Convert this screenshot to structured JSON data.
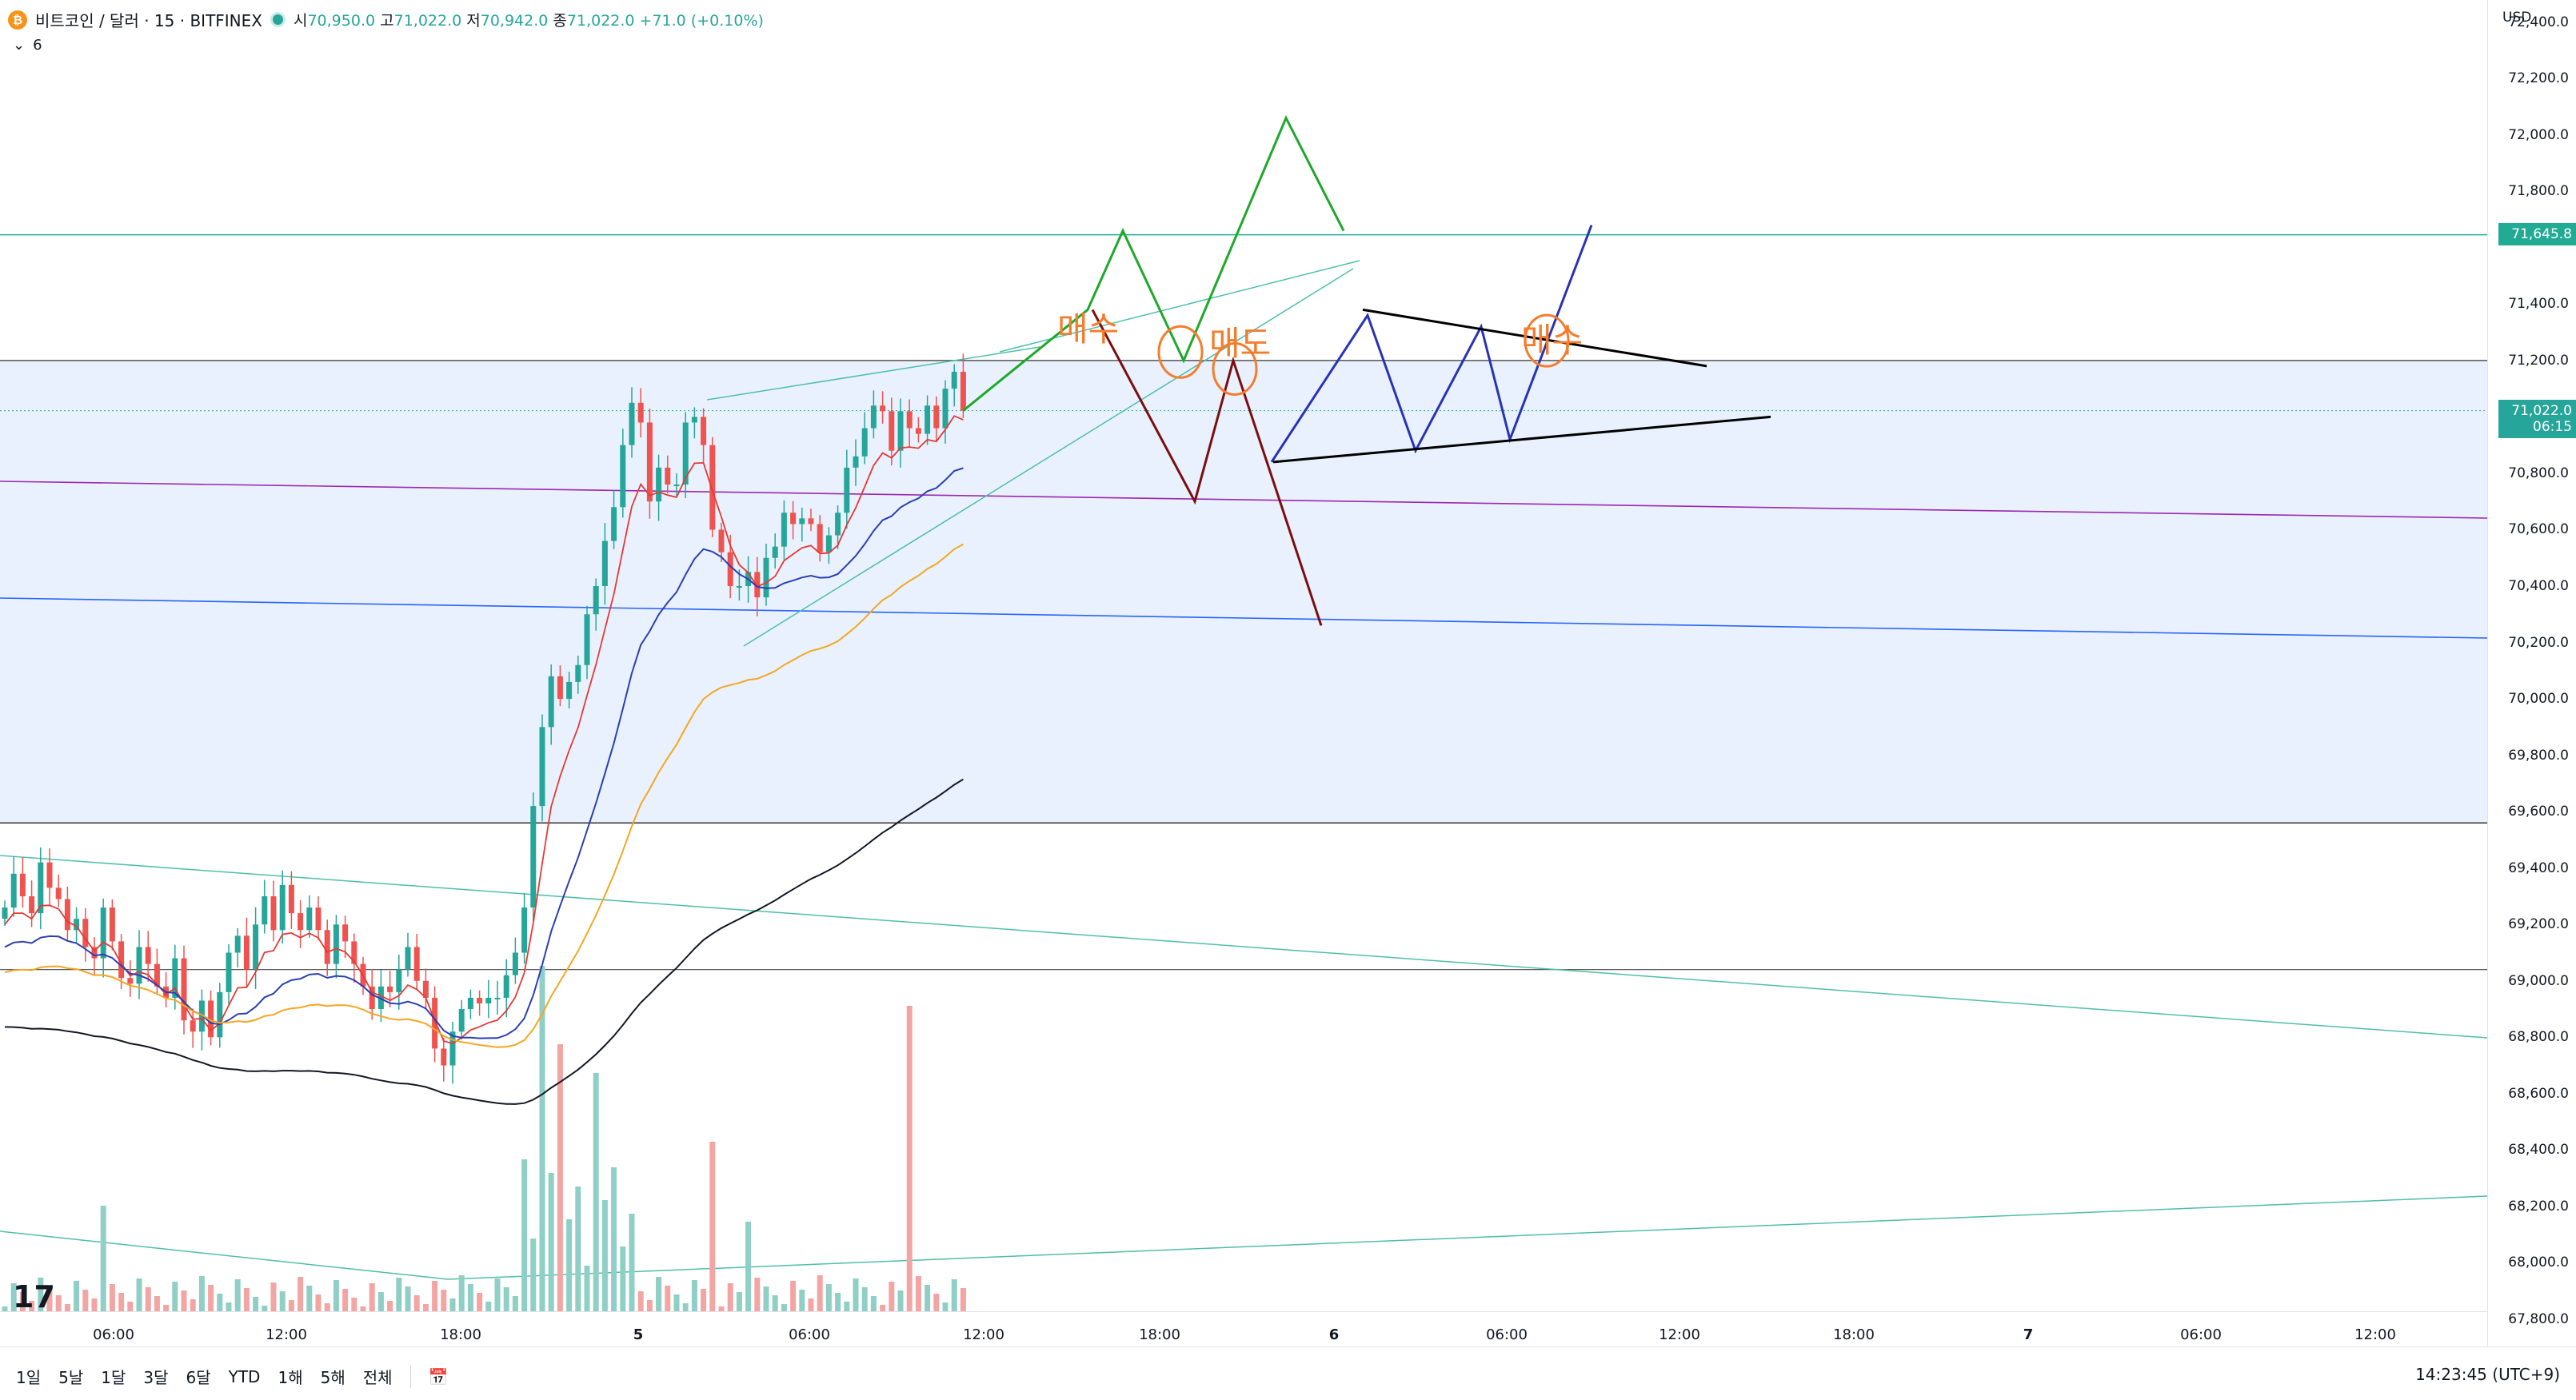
{
  "header": {
    "symbol": "비트코인 / 달러 · 15 · BITFINEX",
    "coin_glyph": "₿",
    "ohlc": [
      {
        "k": "시",
        "v": "70,950.0"
      },
      {
        "k": "고",
        "v": "71,022.0"
      },
      {
        "k": "저",
        "v": "70,942.0"
      },
      {
        "k": "종",
        "v": "71,022.0"
      },
      {
        "k": "",
        "v": "+71.0 (+0.10%)"
      }
    ],
    "indicator_count": "6"
  },
  "price_axis": {
    "currency": "USD",
    "ticks": [
      "72,400.0",
      "72,200.0",
      "72,000.0",
      "71,800.0",
      "71,400.0",
      "71,200.0",
      "70,800.0",
      "70,600.0",
      "70,400.0",
      "70,200.0",
      "70,000.0",
      "69,800.0",
      "69,600.0",
      "69,400.0",
      "69,200.0",
      "69,000.0",
      "68,800.0",
      "68,600.0",
      "68,400.0",
      "68,200.0",
      "68,000.0",
      "67,800.0"
    ],
    "labels": [
      {
        "text": "71,645.8",
        "color": "#22ab94"
      },
      {
        "text": "71,022.0",
        "sub": "06:15",
        "color": "#26a69a"
      }
    ]
  },
  "time_axis": {
    "ticks": [
      "06:00",
      "12:00",
      "18:00",
      "5",
      "06:00",
      "12:00",
      "18:00",
      "6",
      "06:00",
      "12:00",
      "18:00",
      "7",
      "06:00",
      "12:00"
    ]
  },
  "toolbar": {
    "ranges": [
      "1일",
      "5날",
      "1달",
      "3달",
      "6달",
      "YTD",
      "1해",
      "5해",
      "전체"
    ],
    "clock": "14:23:45 (UTC+9)"
  },
  "annotations": {
    "buy_1": "매수",
    "sell_1": "매도",
    "buy_2": "매수"
  },
  "logo": "17",
  "colors": {
    "up": "#26a69a",
    "down": "#ef5350",
    "ema_fast": "#e53935",
    "ema_mid": "#2b3fb5",
    "ema_slow": "#f5a623",
    "ema_long": "#131722",
    "zone_fill": "#e8f1fd",
    "path_up": "#1ea82a",
    "path_down": "#7b0e0e",
    "path_triangle": "#2833b5",
    "annotation": "#f57c2b"
  },
  "chart_data": {
    "type": "candlestick",
    "symbol": "BTC/USD",
    "interval": "15",
    "exchange": "BITFINEX",
    "ylim": [
      67800,
      72450
    ],
    "last": {
      "open": 70950.0,
      "high": 71022.0,
      "low": 70942.0,
      "close": 71022.0,
      "change": 71.0,
      "change_pct": 0.1
    },
    "horizontal_levels": [
      71645.8,
      71200,
      71022,
      69560,
      69040
    ],
    "highlighted_zone": [
      69560,
      71200
    ],
    "candles_ohlc_close_series": [
      69260,
      69380,
      69300,
      69240,
      69420,
      69330,
      69290,
      69180,
      69220,
      69120,
      69080,
      69260,
      69140,
      69010,
      68990,
      69120,
      69060,
      68980,
      68940,
      69080,
      68860,
      68820,
      68930,
      68800,
      68960,
      69100,
      69160,
      69040,
      69200,
      69300,
      69180,
      69340,
      69240,
      69180,
      69260,
      69180,
      69060,
      69200,
      69140,
      69060,
      68980,
      68900,
      68980,
      68960,
      69040,
      69120,
      69000,
      68940,
      68760,
      68700,
      68820,
      68900,
      68940,
      68920,
      68940,
      68940,
      69020,
      69100,
      69260,
      69620,
      69900,
      70080,
      70000,
      70060,
      70120,
      70300,
      70400,
      70560,
      70680,
      70900,
      71050,
      70980,
      70700,
      70820,
      70760,
      70760,
      70980,
      71000,
      70900,
      70600,
      70520,
      70400,
      70400,
      70450,
      70360,
      70500,
      70540,
      70660,
      70620,
      70640,
      70620,
      70520,
      70580,
      70660,
      70820,
      70860,
      70960,
      71040,
      71020,
      70880,
      71020,
      70960,
      70940,
      71040,
      70960,
      71100,
      71160,
      71022
    ],
    "projected_paths": [
      {
        "name": "매수",
        "points": [
          [
            0,
            71022
          ],
          [
            1,
            71380
          ],
          [
            2,
            71660
          ],
          [
            3,
            71200
          ],
          [
            4,
            72060
          ],
          [
            5,
            71660
          ]
        ]
      },
      {
        "name": "매도",
        "points": [
          [
            0,
            71380
          ],
          [
            1,
            70700
          ],
          [
            2,
            71200
          ],
          [
            3,
            70260
          ]
        ]
      },
      {
        "name": "triangle",
        "points": [
          [
            0,
            70840
          ],
          [
            1,
            71360
          ],
          [
            2,
            70880
          ],
          [
            3,
            71320
          ],
          [
            4,
            70920
          ],
          [
            5,
            71680
          ]
        ]
      }
    ]
  }
}
